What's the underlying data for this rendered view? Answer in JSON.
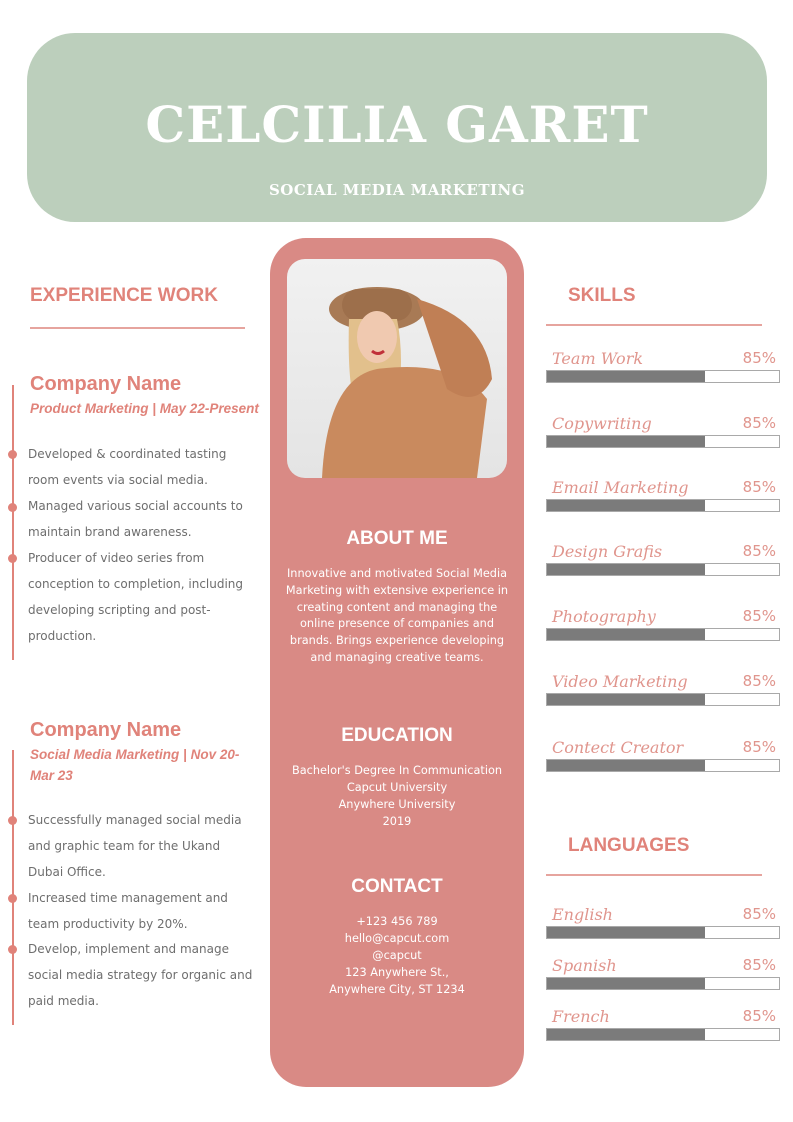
{
  "header": {
    "name": "CELCILIA GARET",
    "role": "SOCIAL MEDIA MARKETING"
  },
  "experience": {
    "heading": "EXPERIENCE WORK",
    "jobs": [
      {
        "company": "Company Name",
        "subtitle": "Product Marketing | May 22-Present",
        "bullets": [
          "Developed & coordinated tasting room events via social media.",
          "Managed various social accounts to maintain brand awareness.",
          "Producer of video series from conception to completion, including developing scripting and post-production."
        ]
      },
      {
        "company": "Company Name",
        "subtitle": "Social Media Marketing | Nov 20-Mar 23",
        "bullets": [
          "Successfully managed social media and graphic team for the Ukand Dubai Office.",
          "Increased time management and team productivity by 20%.",
          "Develop, implement and manage social media strategy for organic and paid media."
        ]
      }
    ]
  },
  "about": {
    "heading": "ABOUT ME",
    "text": "Innovative and motivated Social Media Marketing with extensive experience in creating content and managing the online presence of companies and brands. Brings experience developing and managing creative teams."
  },
  "education": {
    "heading": "EDUCATION",
    "lines": [
      "Bachelor's Degree In Communication",
      "Capcut University",
      "Anywhere University",
      "2019"
    ]
  },
  "contact": {
    "heading": "CONTACT",
    "lines": [
      "+123  456 789",
      "hello@capcut.com",
      "@capcut",
      "123 Anywhere St.,",
      "Anywhere City, ST 1234"
    ]
  },
  "skills": {
    "heading": "SKILLS",
    "items": [
      {
        "label": "Team Work",
        "percent": "85%",
        "fill": 0.68
      },
      {
        "label": "Copywriting",
        "percent": "85%",
        "fill": 0.68
      },
      {
        "label": "Email Marketing",
        "percent": "85%",
        "fill": 0.68
      },
      {
        "label": "Design Grafis",
        "percent": "85%",
        "fill": 0.68
      },
      {
        "label": "Photography",
        "percent": "85%",
        "fill": 0.68
      },
      {
        "label": "Video Marketing",
        "percent": "85%",
        "fill": 0.68
      },
      {
        "label": "Contect Creator",
        "percent": "85%",
        "fill": 0.68
      }
    ]
  },
  "languages": {
    "heading": "LANGUAGES",
    "items": [
      {
        "label": "English",
        "percent": "85%",
        "fill": 0.68
      },
      {
        "label": "Spanish",
        "percent": "85%",
        "fill": 0.68
      },
      {
        "label": "French",
        "percent": "85%",
        "fill": 0.68
      }
    ]
  },
  "colors": {
    "header": "#bccfbc",
    "accent": "#d98a85",
    "text_accent": "#e0837a",
    "bar": "#7b7b7b"
  }
}
